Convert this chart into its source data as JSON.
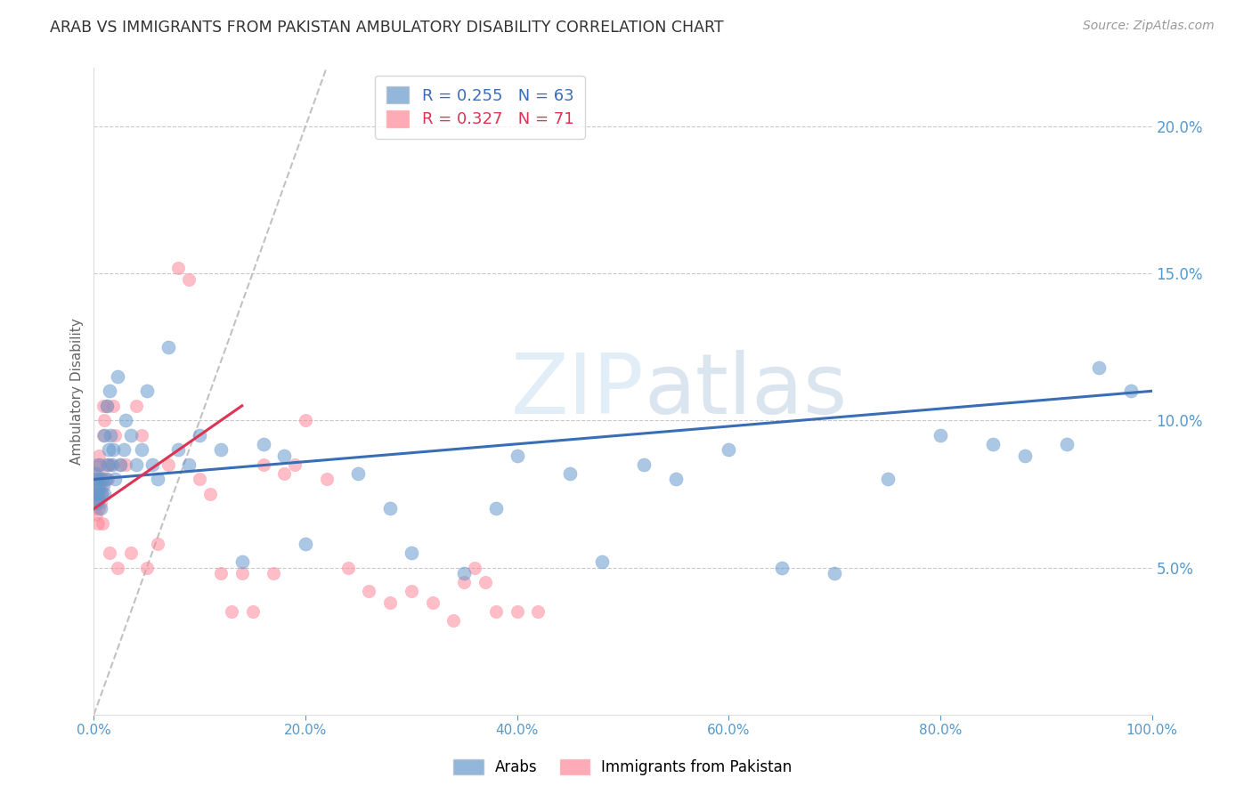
{
  "title": "ARAB VS IMMIGRANTS FROM PAKISTAN AMBULATORY DISABILITY CORRELATION CHART",
  "source": "Source: ZipAtlas.com",
  "ylabel": "Ambulatory Disability",
  "watermark": "ZIPatlas",
  "legend_arab": "Arabs",
  "legend_pak": "Immigrants from Pakistan",
  "arab_R": "0.255",
  "arab_N": "63",
  "pak_R": "0.327",
  "pak_N": "71",
  "arab_color": "#6699CC",
  "pak_color": "#FF8899",
  "arab_line_color": "#3B6DB5",
  "pak_line_color": "#DD3355",
  "ref_line_color": "#BBBBBB",
  "axis_tick_color": "#5599CC",
  "title_color": "#333333",
  "source_color": "#999999",
  "ylabel_color": "#666666",
  "xlim": [
    0,
    100
  ],
  "ylim": [
    0,
    22
  ],
  "yticks": [
    5,
    10,
    15,
    20
  ],
  "xticks": [
    0,
    20,
    40,
    60,
    80,
    100
  ],
  "arab_line_x0": 0,
  "arab_line_y0": 8.0,
  "arab_line_x1": 100,
  "arab_line_y1": 11.0,
  "pak_line_x0": 0,
  "pak_line_y0": 7.0,
  "pak_line_x1": 14,
  "pak_line_y1": 10.5,
  "ref_line_x0": 0,
  "ref_line_y0": 0,
  "ref_line_x1": 22,
  "ref_line_y1": 22,
  "arab_points_x": [
    0.1,
    0.15,
    0.2,
    0.25,
    0.3,
    0.35,
    0.4,
    0.5,
    0.5,
    0.6,
    0.7,
    0.8,
    0.9,
    1.0,
    1.0,
    1.1,
    1.2,
    1.3,
    1.4,
    1.5,
    1.6,
    1.7,
    1.8,
    2.0,
    2.2,
    2.5,
    2.8,
    3.0,
    3.5,
    4.0,
    4.5,
    5.0,
    5.5,
    6.0,
    7.0,
    8.0,
    9.0,
    10.0,
    12.0,
    14.0,
    16.0,
    18.0,
    20.0,
    25.0,
    28.0,
    30.0,
    35.0,
    38.0,
    40.0,
    45.0,
    48.0,
    52.0,
    55.0,
    60.0,
    65.0,
    70.0,
    75.0,
    80.0,
    85.0,
    88.0,
    92.0,
    95.0,
    98.0
  ],
  "arab_points_y": [
    7.8,
    8.2,
    7.5,
    7.2,
    8.0,
    7.5,
    7.3,
    7.8,
    8.5,
    7.0,
    7.5,
    8.0,
    7.8,
    7.5,
    9.5,
    8.0,
    10.5,
    8.5,
    9.0,
    11.0,
    9.5,
    8.5,
    9.0,
    8.0,
    11.5,
    8.5,
    9.0,
    10.0,
    9.5,
    8.5,
    9.0,
    11.0,
    8.5,
    8.0,
    12.5,
    9.0,
    8.5,
    9.5,
    9.0,
    5.2,
    9.2,
    8.8,
    5.8,
    8.2,
    7.0,
    5.5,
    4.8,
    7.0,
    8.8,
    8.2,
    5.2,
    8.5,
    8.0,
    9.0,
    5.0,
    4.8,
    8.0,
    9.5,
    9.2,
    8.8,
    9.2,
    11.8,
    11.0
  ],
  "pak_points_x": [
    0.05,
    0.08,
    0.1,
    0.12,
    0.15,
    0.18,
    0.2,
    0.22,
    0.25,
    0.28,
    0.3,
    0.32,
    0.35,
    0.38,
    0.4,
    0.42,
    0.45,
    0.48,
    0.5,
    0.55,
    0.6,
    0.65,
    0.7,
    0.75,
    0.8,
    0.85,
    0.9,
    1.0,
    1.1,
    1.2,
    1.3,
    1.4,
    1.5,
    1.6,
    1.8,
    2.0,
    2.2,
    2.5,
    3.0,
    3.5,
    4.0,
    4.5,
    5.0,
    6.0,
    7.0,
    8.0,
    9.0,
    10.0,
    11.0,
    12.0,
    13.0,
    14.0,
    15.0,
    16.0,
    17.0,
    18.0,
    19.0,
    20.0,
    22.0,
    24.0,
    26.0,
    28.0,
    30.0,
    32.0,
    34.0,
    35.0,
    36.0,
    37.0,
    38.0,
    40.0,
    42.0
  ],
  "pak_points_y": [
    7.5,
    7.0,
    7.8,
    8.0,
    7.5,
    7.2,
    6.8,
    7.5,
    8.5,
    8.0,
    7.2,
    7.8,
    7.5,
    6.5,
    8.2,
    7.8,
    8.8,
    7.5,
    7.0,
    8.5,
    8.0,
    7.2,
    7.8,
    7.5,
    6.5,
    10.5,
    9.5,
    10.0,
    8.5,
    10.5,
    8.0,
    8.5,
    5.5,
    8.5,
    10.5,
    9.5,
    5.0,
    8.5,
    8.5,
    5.5,
    10.5,
    9.5,
    5.0,
    5.8,
    8.5,
    15.2,
    14.8,
    8.0,
    7.5,
    4.8,
    3.5,
    4.8,
    3.5,
    8.5,
    4.8,
    8.2,
    8.5,
    10.0,
    8.0,
    5.0,
    4.2,
    3.8,
    4.2,
    3.8,
    3.2,
    4.5,
    5.0,
    4.5,
    3.5,
    3.5,
    3.5
  ]
}
